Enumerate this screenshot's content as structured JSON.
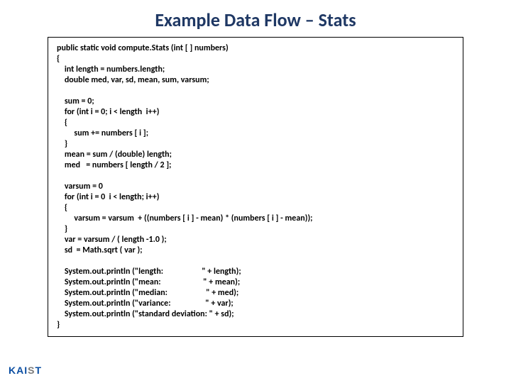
{
  "title": "Example Data Flow – Stats",
  "title_color": "#1f3864",
  "title_fontsize": 26,
  "code_fontsize": 12,
  "code_lines": [
    "public static void compute.Stats (int [ ] numbers)",
    "{",
    "    int length = numbers.length;",
    "    double med, var, sd, mean, sum, varsum;",
    "",
    "    sum = 0;",
    "    for (int i = 0; i < length  i++)",
    "    {",
    "         sum += numbers [ i ];",
    "    }",
    "    mean = sum / (double) length;",
    "    med   = numbers [ length / 2 ];",
    "",
    "    varsum = 0",
    "    for (int i = 0  i < length; i++)",
    "    {",
    "         varsum = varsum  + ((numbers [ i ] - mean) * (numbers [ i ] - mean));",
    "    }",
    "    var = varsum / ( length -1.0 );",
    "    sd  = Math.sqrt ( var );",
    "",
    "    System.out.println (\"length:                    \" + length);",
    "    System.out.println (\"mean:                      \" + mean);",
    "    System.out.println (\"median:                    \" + med);",
    "    System.out.println (\"variance:                  \" + var);",
    "    System.out.println (\"standard deviation: \" + sd);",
    "}"
  ],
  "logo": {
    "text": "KAIST",
    "fontsize": 14
  },
  "background_color": "#ffffff",
  "border_color": "#000000"
}
